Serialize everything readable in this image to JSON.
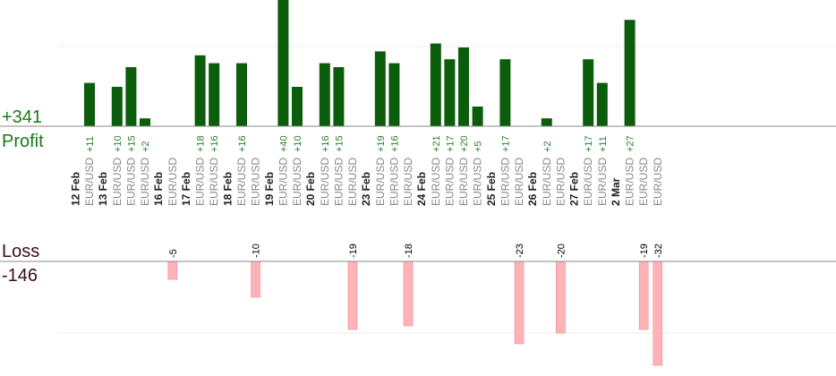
{
  "summary": {
    "profit_total": "+341",
    "profit_label": "Profit",
    "loss_label": "Loss",
    "loss_total": "-146"
  },
  "colors": {
    "profit_bar": "#0b5d0b",
    "loss_bar": "#ffb3b8",
    "profit_text": "#1a7a1a",
    "loss_text": "#3a0f0f",
    "axis": "#888888",
    "grid": "#eeeeee"
  },
  "chart_data": {
    "type": "bar",
    "profit_ylim": [
      0,
      27
    ],
    "loss_ylim": [
      -32,
      0
    ],
    "groups": [
      {
        "date": "12 Feb",
        "pairs": [
          "EUR/USD"
        ],
        "profits": [
          "+11"
        ],
        "losses": []
      },
      {
        "date": "13 Feb",
        "pairs": [
          "EUR/USD",
          "EUR/USD",
          "EUR/USD"
        ],
        "profits": [
          "+10",
          "+15",
          "+2"
        ],
        "losses": []
      },
      {
        "date": "16 Feb",
        "pairs": [
          "EUR/USD"
        ],
        "profits": [],
        "losses": [
          "-5"
        ]
      },
      {
        "date": "17 Feb",
        "pairs": [
          "EUR/USD",
          "EUR/USD"
        ],
        "profits": [
          "+18",
          "+16"
        ],
        "losses": []
      },
      {
        "date": "18 Feb",
        "pairs": [
          "EUR/USD",
          "EUR/USD"
        ],
        "profits": [
          "+16"
        ],
        "losses": [
          "-10"
        ]
      },
      {
        "date": "19 Feb",
        "pairs": [
          "EUR/USD",
          "EUR/USD"
        ],
        "profits": [
          "+40",
          "+10"
        ],
        "losses": []
      },
      {
        "date": "20 Feb",
        "pairs": [
          "EUR/USD",
          "EUR/USD",
          "EUR/USD"
        ],
        "profits": [
          "+16",
          "+15"
        ],
        "losses": [
          "-19"
        ]
      },
      {
        "date": "23 Feb",
        "pairs": [
          "EUR/USD",
          "EUR/USD",
          "EUR/USD"
        ],
        "profits": [
          "+19",
          "+16"
        ],
        "losses": [
          "-18"
        ]
      },
      {
        "date": "24 Feb",
        "pairs": [
          "EUR/USD",
          "EUR/USD",
          "EUR/USD",
          "EUR/USD"
        ],
        "profits": [
          "+21",
          "+17",
          "+20",
          "+5"
        ],
        "losses": []
      },
      {
        "date": "25 Feb",
        "pairs": [
          "EUR/USD",
          "EUR/USD"
        ],
        "profits": [
          "+17"
        ],
        "losses": [
          "-23"
        ]
      },
      {
        "date": "26 Feb",
        "pairs": [
          "EUR/USD",
          "EUR/USD"
        ],
        "profits": [
          "+2"
        ],
        "losses": [
          "-20"
        ]
      },
      {
        "date": "27 Feb",
        "pairs": [
          "EUR/USD",
          "EUR/USD"
        ],
        "profits": [
          "+17",
          "+11"
        ],
        "losses": []
      },
      {
        "date": "2 Mar",
        "pairs": [
          "EUR/USD",
          "EUR/USD",
          "EUR/USD"
        ],
        "profits": [
          "+27"
        ],
        "losses": [
          "-19",
          "-32"
        ]
      }
    ]
  }
}
